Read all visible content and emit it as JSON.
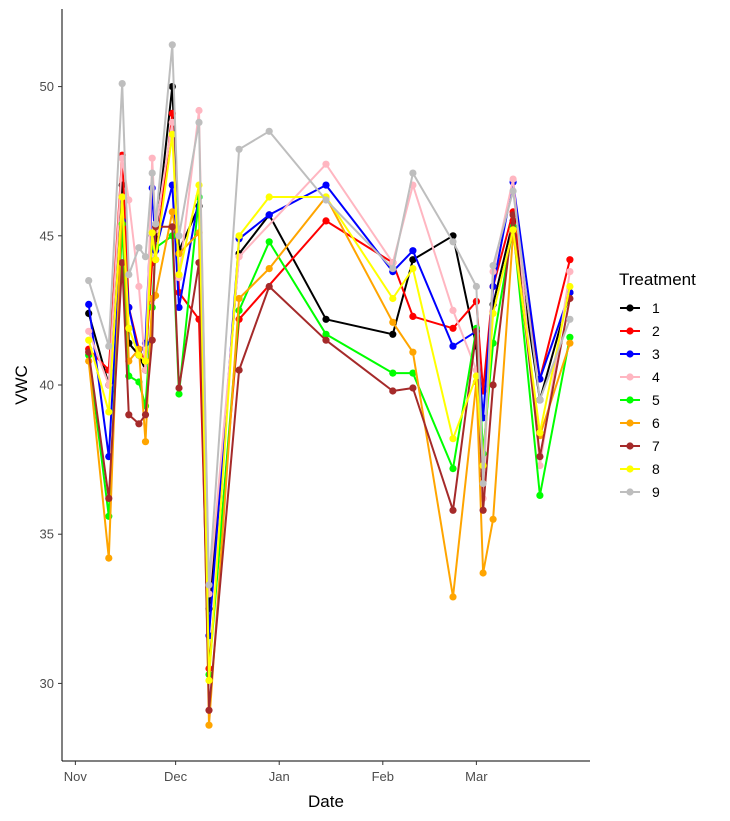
{
  "chart_data": {
    "type": "line",
    "title": "",
    "xlabel": "Date",
    "ylabel": "VWC",
    "x_ticks": [
      {
        "label": "Nov",
        "date": "2020-11-01"
      },
      {
        "label": "Dec",
        "date": "2020-12-01"
      },
      {
        "label": "Jan",
        "date": "2021-01-01"
      },
      {
        "label": "Feb",
        "date": "2021-02-01"
      },
      {
        "label": "Mar",
        "date": "2021-03-01"
      }
    ],
    "y_ticks": [
      30,
      35,
      40,
      45,
      50
    ],
    "xlim": [
      "2020-10-28",
      "2021-04-04"
    ],
    "ylim": [
      27.4,
      52.6
    ],
    "grid": false,
    "legend": {
      "title": "Treatment",
      "position": "right"
    },
    "x": [
      "2020-11-05",
      "2020-11-11",
      "2020-11-15",
      "2020-11-17",
      "2020-11-20",
      "2020-11-22",
      "2020-11-24",
      "2020-11-25",
      "2020-11-30",
      "2020-12-02",
      "2020-12-08",
      "2020-12-11",
      "2020-12-20",
      "2020-12-29",
      "2021-01-15",
      "2021-02-04",
      "2021-02-10",
      "2021-02-22",
      "2021-02-29",
      "2021-03-03",
      "2021-03-06",
      "2021-03-12",
      "2021-03-20",
      "2021-03-29"
    ],
    "series": [
      {
        "name": "1",
        "color": "#000000",
        "values": [
          42.4,
          40,
          46.7,
          41.4,
          41,
          40.5,
          45,
          44.9,
          50,
          44.5,
          46,
          32.5,
          44.4,
          45.7,
          42.2,
          41.7,
          44.2,
          45,
          41.3,
          37,
          42.7,
          45.5,
          39.5,
          43.1
        ]
      },
      {
        "name": "2",
        "color": "#ff0000",
        "values": [
          41.2,
          40.5,
          47.7,
          42.6,
          41.2,
          40.8,
          44.1,
          44.2,
          49.1,
          43.1,
          42.2,
          30.5,
          42.2,
          null,
          45.5,
          44.1,
          42.3,
          41.9,
          42.8,
          39.8,
          43.3,
          45.8,
          40.2,
          44.2
        ]
      },
      {
        "name": "3",
        "color": "#0000ff",
        "values": [
          42.7,
          37.6,
          45.5,
          42.6,
          41,
          41.4,
          46.6,
          44.5,
          46.7,
          42.6,
          46.3,
          31.6,
          44.9,
          45.7,
          46.7,
          43.8,
          44.5,
          41.3,
          41.8,
          38.9,
          43.3,
          46.8,
          40.2,
          43.1
        ]
      },
      {
        "name": "4",
        "color": "#ffb6c1",
        "values": [
          41.8,
          40,
          47.6,
          46.2,
          43.3,
          40.5,
          47.6,
          45.2,
          48.8,
          43.6,
          49.2,
          33,
          44.3,
          null,
          47.4,
          44.1,
          46.7,
          42.5,
          40.5,
          36.2,
          43.8,
          46.9,
          37.3,
          43.8
        ]
      },
      {
        "name": "5",
        "color": "#00ff00",
        "values": [
          41,
          35.6,
          45.4,
          40.3,
          40.1,
          39.3,
          42.6,
          44.6,
          45,
          39.7,
          46.3,
          30.3,
          42.5,
          44.8,
          41.7,
          40.4,
          40.4,
          37.2,
          41.9,
          37.7,
          41.4,
          45.3,
          36.3,
          41.6
        ]
      },
      {
        "name": "6",
        "color": "#ffa500",
        "values": [
          40.8,
          34.2,
          46.3,
          40.8,
          41.2,
          38.1,
          42.9,
          43,
          45.8,
          44.4,
          45.1,
          28.6,
          42.9,
          43.9,
          46.3,
          42.1,
          41.1,
          32.9,
          40.1,
          33.7,
          35.5,
          45.1,
          38.3,
          41.4
        ]
      },
      {
        "name": "7",
        "color": "#a52a2a",
        "values": [
          41.1,
          36.2,
          44.1,
          39,
          38.7,
          39,
          41.5,
          45.3,
          45.3,
          39.9,
          44.1,
          29.1,
          40.5,
          43.3,
          41.5,
          39.8,
          39.9,
          35.8,
          41.8,
          35.8,
          40,
          45.7,
          37.6,
          42.9
        ]
      },
      {
        "name": "8",
        "color": "#ffff00",
        "values": [
          41.5,
          39.1,
          46.3,
          41.9,
          41,
          40.8,
          45.1,
          44.2,
          48.4,
          43.7,
          46.7,
          30.1,
          45,
          46.3,
          46.3,
          42.9,
          43.9,
          38.2,
          40.3,
          37.3,
          42.4,
          45.2,
          38.4,
          43.3
        ]
      },
      {
        "name": "9",
        "color": "#bebebe",
        "values": [
          43.5,
          41.3,
          50.1,
          43.7,
          44.6,
          44.3,
          47.1,
          45.4,
          51.4,
          45,
          48.8,
          33.3,
          47.9,
          48.5,
          46.2,
          43.9,
          47.1,
          44.8,
          43.3,
          36.7,
          44,
          46.5,
          39.5,
          42.2
        ]
      }
    ]
  }
}
